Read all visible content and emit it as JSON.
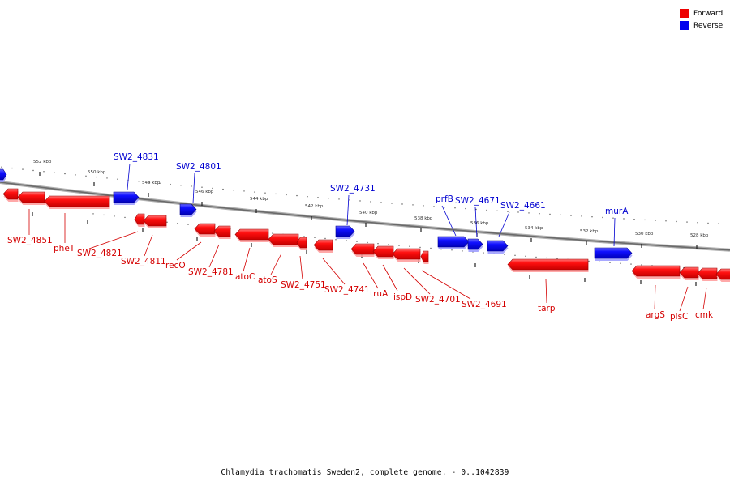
{
  "legend": {
    "forward_label": "Forward",
    "reverse_label": "Reverse",
    "forward_color": "#ff0000",
    "reverse_color": "#0000ff"
  },
  "caption": "Chlamydia trachomatis Sweden2, complete genome. - 0..1042839",
  "scale_labels": [
    "552 kbp",
    "550 kbp",
    "548 kbp",
    "546 kbp",
    "544 kbp",
    "542 kbp",
    "540 kbp",
    "538 kbp",
    "536 kbp",
    "534 kbp",
    "532 kbp",
    "530 kbp",
    "528 kbp"
  ],
  "genes": [
    {
      "strand": "reverse",
      "label": ""
    },
    {
      "strand": "forward",
      "label": "SW2_4851"
    },
    {
      "strand": "forward",
      "label": ""
    },
    {
      "strand": "forward",
      "label": "pheT"
    },
    {
      "strand": "reverse",
      "label": "SW2_4831"
    },
    {
      "strand": "forward",
      "label": "SW2_4821"
    },
    {
      "strand": "forward",
      "label": "SW2_4811"
    },
    {
      "strand": "reverse",
      "label": "SW2_4801"
    },
    {
      "strand": "forward",
      "label": "recO"
    },
    {
      "strand": "forward",
      "label": "SW2_4781"
    },
    {
      "strand": "forward",
      "label": "atoC"
    },
    {
      "strand": "forward",
      "label": "atoS"
    },
    {
      "strand": "forward",
      "label": "SW2_4751"
    },
    {
      "strand": "forward",
      "label": "SW2_4741"
    },
    {
      "strand": "reverse",
      "label": "SW2_4731"
    },
    {
      "strand": "forward",
      "label": "truA"
    },
    {
      "strand": "forward",
      "label": "ispD"
    },
    {
      "strand": "forward",
      "label": "SW2_4701"
    },
    {
      "strand": "forward",
      "label": "SW2_4691"
    },
    {
      "strand": "reverse",
      "label": "prfB"
    },
    {
      "strand": "reverse",
      "label": "SW2_4671"
    },
    {
      "strand": "reverse",
      "label": "SW2_4661"
    },
    {
      "strand": "forward",
      "label": "tarp"
    },
    {
      "strand": "reverse",
      "label": "murA"
    },
    {
      "strand": "forward",
      "label": "argS"
    },
    {
      "strand": "forward",
      "label": "plsC"
    },
    {
      "strand": "forward",
      "label": "cmk"
    },
    {
      "strand": "forward",
      "label": ""
    }
  ]
}
